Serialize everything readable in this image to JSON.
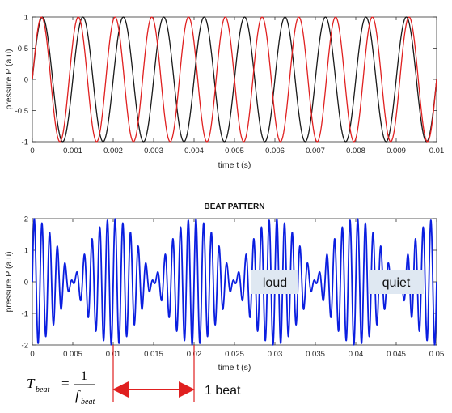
{
  "chart_data": [
    {
      "type": "line",
      "title": "",
      "xlabel": "time  t (s)",
      "ylabel": "pressure  P  (a.u)",
      "xlim": [
        0,
        0.01
      ],
      "ylim": [
        -1,
        1
      ],
      "x_ticks": [
        "0",
        "0.001",
        "0.002",
        "0.003",
        "0.004",
        "0.005",
        "0.006",
        "0.007",
        "0.008",
        "0.009",
        "0.01"
      ],
      "y_ticks": [
        "1",
        "0.5",
        "0",
        "-0.5",
        "-1"
      ],
      "series": [
        {
          "function": "sin(2*pi*f*t)",
          "frequency_hz": 1000,
          "amplitude": 1,
          "color": "#1a1a1a",
          "x_start": 0,
          "x_end": 0.01,
          "points": 600
        },
        {
          "function": "sin(2*pi*f*t)",
          "frequency_hz": 1100,
          "amplitude": 1,
          "color": "#e02020",
          "x_start": 0,
          "x_end": 0.01,
          "points": 600
        }
      ],
      "grid": false
    },
    {
      "type": "line",
      "title": "BEAT PATTERN",
      "xlabel": "time  t (s)",
      "ylabel": "pressure  P  (a.u)",
      "xlim": [
        0,
        0.05
      ],
      "ylim": [
        -2,
        2
      ],
      "x_ticks": [
        "0",
        "0.005",
        "0.01",
        "0.015",
        "0.02",
        "0.025",
        "0.03",
        "0.035",
        "0.04",
        "0.045",
        "0.05"
      ],
      "y_ticks": [
        "2",
        "1",
        "0",
        "-1",
        "-2"
      ],
      "series": [
        {
          "function": "sin(2*pi*f1*t) + sin(2*pi*f2*t)",
          "frequency_hz": [
            1000,
            1100
          ],
          "amplitude": 2,
          "color": "#0a1ee0",
          "x_start": 0,
          "x_end": 0.05,
          "points": 2500
        }
      ],
      "annotations": [
        {
          "text": "loud",
          "x": 0.03,
          "y": 0
        },
        {
          "text": "quiet",
          "x": 0.045,
          "y": 0
        }
      ],
      "beat_markers": [
        0.01,
        0.02
      ],
      "beat_label": "1 beat",
      "formula": {
        "lhs": "T",
        "lhs_sub": "beat",
        "num": "1",
        "den": "f",
        "den_sub": "beat"
      },
      "grid": false
    }
  ]
}
